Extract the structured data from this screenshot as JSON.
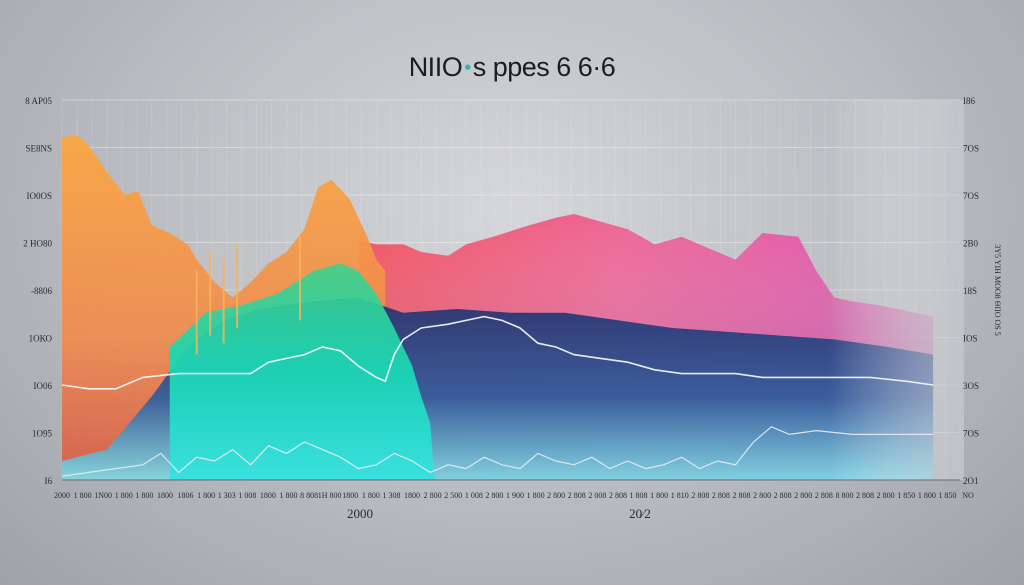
{
  "title": {
    "part1": "NIIO",
    "dot": "•",
    "part2": "s ppes 6 6·6"
  },
  "chart_data": {
    "type": "area",
    "title": "NIIO •s ppes 6 6·6",
    "xlabel": "",
    "ylabel": "",
    "year_labels": [
      "2000",
      "20⁄2"
    ],
    "y_left_ticks": [
      "8 ΑΡ05",
      "SЕ8ΝS",
      "ΙΟ0ΟS",
      "2 ΗΟ80",
      "-8806",
      "1ΟΚΟ",
      "ΙΟ06",
      "1Ο95",
      "Ι6"
    ],
    "y_right_ticks": [
      "Ι86",
      "7ΟS",
      "7ΟS",
      "2Β0",
      "18S",
      "ΙΟS",
      "3ΟS",
      "7ΟS",
      "2Ο1"
    ],
    "right_axis_label": "3Υ5 ΥΙΗ ΜΟΟ8 ΘΙΙΟ ΟS 5",
    "x_ticks": [
      "2000",
      "1 800",
      "1Ν00",
      "1 800",
      "1 800",
      "1800",
      "1806",
      "1 800",
      "1 303",
      "1 008",
      "1800",
      "1 800",
      "8 808",
      "1Η 800",
      "1800",
      "1 800",
      "1 308",
      "1800",
      "2 800",
      "2 500",
      "1 008",
      "2 800",
      "1 900",
      "1 800",
      "2 800",
      "2 808",
      "2 008",
      "2 808",
      "1 808",
      "1 800",
      "1 810",
      "2 808",
      "2 808",
      "2 808",
      "2 800",
      "2 808",
      "2 800",
      "2 808",
      "8 800",
      "2 808",
      "2 800",
      "1 850",
      "1 800",
      "1 850",
      "NΟ"
    ],
    "ylim": [
      0,
      100
    ],
    "xlim": [
      0,
      100
    ],
    "series": [
      {
        "name": "",
        "color": "#f7a94a",
        "points": [
          [
            0,
            90
          ],
          [
            1.5,
            91
          ],
          [
            3,
            88
          ],
          [
            5,
            81
          ],
          [
            7,
            75
          ],
          [
            8.5,
            76
          ],
          [
            10,
            67
          ],
          [
            12,
            65
          ],
          [
            14,
            62
          ],
          [
            15,
            58
          ],
          [
            17,
            52
          ],
          [
            19,
            48
          ],
          [
            21,
            52
          ],
          [
            23,
            57
          ],
          [
            25,
            60
          ],
          [
            27,
            66
          ],
          [
            28.5,
            77
          ],
          [
            30,
            79
          ],
          [
            32,
            74
          ],
          [
            34,
            64
          ],
          [
            35,
            58
          ],
          [
            36,
            55
          ]
        ]
      },
      {
        "name": "",
        "color": "#f0566a",
        "points": [
          [
            33,
            63
          ],
          [
            35,
            62
          ],
          [
            38,
            62
          ],
          [
            40,
            60
          ],
          [
            43,
            59
          ],
          [
            45,
            62
          ],
          [
            48,
            64
          ],
          [
            52,
            67
          ],
          [
            55,
            69
          ],
          [
            57,
            70
          ],
          [
            60,
            68
          ],
          [
            63,
            66
          ],
          [
            66,
            62
          ],
          [
            69,
            64
          ],
          [
            72,
            61
          ],
          [
            75,
            58
          ],
          [
            78,
            65
          ],
          [
            82,
            64
          ],
          [
            84,
            55
          ],
          [
            86,
            48
          ],
          [
            88,
            47
          ],
          [
            91,
            46
          ],
          [
            95,
            44
          ],
          [
            97,
            43
          ]
        ]
      },
      {
        "name": "",
        "color": "#1fd2ae",
        "points": [
          [
            12,
            35
          ],
          [
            16,
            44
          ],
          [
            20,
            46
          ],
          [
            24,
            49
          ],
          [
            28,
            55
          ],
          [
            31,
            57
          ],
          [
            33,
            55
          ],
          [
            35,
            49
          ],
          [
            37,
            40
          ],
          [
            39,
            30
          ],
          [
            40,
            22
          ],
          [
            41,
            15
          ],
          [
            41.5,
            0
          ]
        ]
      },
      {
        "name": "",
        "color": "#2e3a78",
        "points": [
          [
            0,
            5
          ],
          [
            5,
            8
          ],
          [
            10,
            22
          ],
          [
            14,
            35
          ],
          [
            18,
            42
          ],
          [
            22,
            45
          ],
          [
            28,
            47
          ],
          [
            33,
            48
          ],
          [
            38,
            44
          ],
          [
            44,
            45
          ],
          [
            50,
            44
          ],
          [
            56,
            44
          ],
          [
            62,
            42
          ],
          [
            68,
            40
          ],
          [
            74,
            39
          ],
          [
            80,
            38
          ],
          [
            86,
            37
          ],
          [
            92,
            35
          ],
          [
            97,
            33
          ]
        ]
      }
    ],
    "line_series": [
      {
        "name": "",
        "color": "#f2f3f5",
        "points": [
          [
            0,
            25
          ],
          [
            3,
            24
          ],
          [
            6,
            24
          ],
          [
            9,
            27
          ],
          [
            13,
            28
          ],
          [
            17,
            28
          ],
          [
            21,
            28
          ],
          [
            23,
            31
          ],
          [
            25,
            32
          ],
          [
            27,
            33
          ],
          [
            29,
            35
          ],
          [
            31,
            34
          ],
          [
            33,
            30
          ],
          [
            35,
            27
          ],
          [
            36,
            26
          ],
          [
            37,
            33
          ],
          [
            38,
            37
          ],
          [
            40,
            40
          ],
          [
            43,
            41
          ],
          [
            45,
            42
          ],
          [
            47,
            43
          ],
          [
            49,
            42
          ],
          [
            51,
            40
          ],
          [
            53,
            36
          ],
          [
            55,
            35
          ],
          [
            57,
            33
          ],
          [
            60,
            32
          ],
          [
            63,
            31
          ],
          [
            66,
            29
          ],
          [
            69,
            28
          ],
          [
            72,
            28
          ],
          [
            75,
            28
          ],
          [
            78,
            27
          ],
          [
            82,
            27
          ],
          [
            86,
            27
          ],
          [
            90,
            27
          ],
          [
            94,
            26
          ],
          [
            97,
            25
          ]
        ]
      },
      {
        "name": "",
        "color": "#e6e8ec",
        "points": [
          [
            0,
            1
          ],
          [
            3,
            2
          ],
          [
            6,
            3
          ],
          [
            9,
            4
          ],
          [
            11,
            7
          ],
          [
            13,
            2
          ],
          [
            15,
            6
          ],
          [
            17,
            5
          ],
          [
            19,
            8
          ],
          [
            21,
            4
          ],
          [
            23,
            9
          ],
          [
            25,
            7
          ],
          [
            27,
            10
          ],
          [
            29,
            8
          ],
          [
            31,
            6
          ],
          [
            33,
            3
          ],
          [
            35,
            4
          ],
          [
            37,
            7
          ],
          [
            39,
            5
          ],
          [
            41,
            2
          ],
          [
            43,
            4
          ],
          [
            45,
            3
          ],
          [
            47,
            6
          ],
          [
            49,
            4
          ],
          [
            51,
            3
          ],
          [
            53,
            7
          ],
          [
            55,
            5
          ],
          [
            57,
            4
          ],
          [
            59,
            6
          ],
          [
            61,
            3
          ],
          [
            63,
            5
          ],
          [
            65,
            3
          ],
          [
            67,
            4
          ],
          [
            69,
            6
          ],
          [
            71,
            3
          ],
          [
            73,
            5
          ],
          [
            75,
            4
          ],
          [
            77,
            10
          ],
          [
            79,
            14
          ],
          [
            81,
            12
          ],
          [
            84,
            13
          ],
          [
            88,
            12
          ],
          [
            92,
            12
          ],
          [
            97,
            12
          ]
        ]
      }
    ],
    "grid": true,
    "legend": "none"
  }
}
